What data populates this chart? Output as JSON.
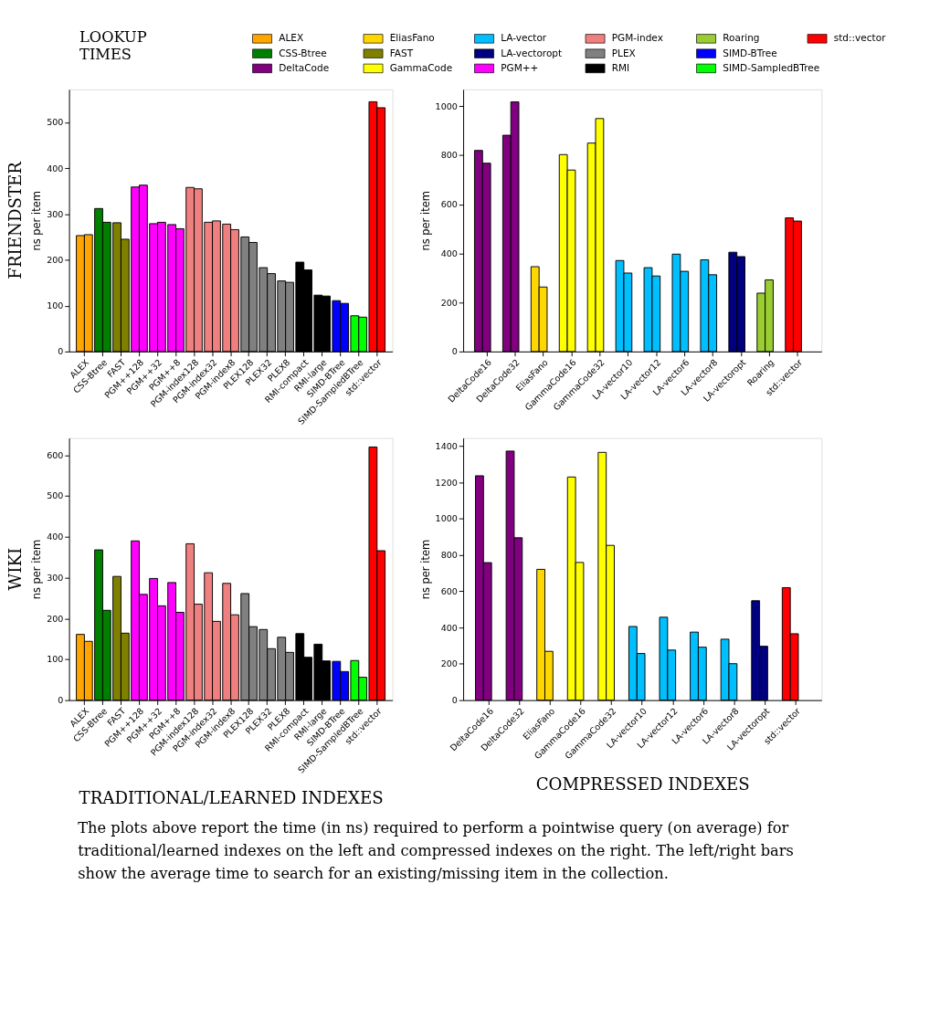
{
  "chart_data": [
    {
      "type": "other",
      "title": "LOOKUP TIMES",
      "categories": [
        "ALEX",
        "CSS-Btree",
        "DeltaCode",
        "EliasFano",
        "FAST",
        "GammaCode",
        "LA-vector",
        "LA-vectoropt",
        "PGM++",
        "PGM-index",
        "PLEX",
        "RMI",
        "Roaring",
        "SIMD-BTree",
        "SIMD-SampledBTree",
        "std::vector"
      ],
      "colors": [
        "#ffa500",
        "#008000",
        "#800080",
        "#ffd700",
        "#808000",
        "#ffff00",
        "#00bfff",
        "#000080",
        "#ff00ff",
        "#f08080",
        "#808080",
        "#000000",
        "#9acd32",
        "#0000ff",
        "#00ff00",
        "#ff0000"
      ]
    },
    {
      "type": "bar",
      "title": "FRIENDSTER",
      "ylabel": "ns per item",
      "ylim": [
        0,
        572
      ],
      "yticks": [
        0,
        100,
        200,
        300,
        400,
        500
      ],
      "categories": [
        "ALEX",
        "CSS-Btree",
        "FAST",
        "PGM++128",
        "PGM++32",
        "PGM++8",
        "PGM-index128",
        "PGM-index32",
        "PGM-index8",
        "PLEX128",
        "PLEX32",
        "PLEX8",
        "RMI-compact",
        "RMI-large",
        "SIMD-BTree",
        "SIMD-SampledBTree",
        "std::vector"
      ],
      "series": [
        {
          "values": [
            253,
            312,
            281,
            359,
            279,
            277,
            358,
            282,
            278,
            250,
            183,
            154,
            195,
            123,
            111,
            78,
            545
          ],
          "colors": [
            "#ffa500",
            "#008000",
            "#808000",
            "#ff00ff",
            "#ff00ff",
            "#ff00ff",
            "#f08080",
            "#f08080",
            "#f08080",
            "#808080",
            "#808080",
            "#808080",
            "#000000",
            "#000000",
            "#0000ff",
            "#00ff00",
            "#ff0000"
          ]
        },
        {
          "values": [
            255,
            282,
            245,
            363,
            282,
            268,
            355,
            285,
            266,
            238,
            170,
            151,
            178,
            121,
            105,
            75,
            532
          ],
          "colors": [
            "#ffa500",
            "#008000",
            "#808000",
            "#ff00ff",
            "#ff00ff",
            "#ff00ff",
            "#f08080",
            "#f08080",
            "#f08080",
            "#808080",
            "#808080",
            "#808080",
            "#000000",
            "#000000",
            "#0000ff",
            "#00ff00",
            "#ff0000"
          ]
        }
      ]
    },
    {
      "type": "bar",
      "ylabel": "ns per item",
      "ylim": [
        0,
        1069
      ],
      "yticks": [
        0,
        200,
        400,
        600,
        800,
        1000
      ],
      "categories": [
        "DeltaCode16",
        "DeltaCode32",
        "EliasFano",
        "GammaCode16",
        "GammaCode32",
        "LA-vector10",
        "LA-vector12",
        "LA-vector6",
        "LA-vector8",
        "LA-vectoropt",
        "Roaring",
        "std::vector"
      ],
      "series": [
        {
          "values": [
            820,
            882,
            346,
            803,
            850,
            371,
            342,
            397,
            374,
            405,
            238,
            545
          ],
          "colors": [
            "#800080",
            "#800080",
            "#ffd700",
            "#ffff00",
            "#ffff00",
            "#00bfff",
            "#00bfff",
            "#00bfff",
            "#00bfff",
            "#000080",
            "#9acd32",
            "#ff0000"
          ]
        },
        {
          "values": [
            768,
            1018,
            263,
            740,
            950,
            320,
            308,
            327,
            313,
            387,
            292,
            532
          ],
          "colors": [
            "#800080",
            "#800080",
            "#ffd700",
            "#ffff00",
            "#ffff00",
            "#00bfff",
            "#00bfff",
            "#00bfff",
            "#00bfff",
            "#000080",
            "#9acd32",
            "#ff0000"
          ]
        }
      ]
    },
    {
      "type": "bar",
      "title": "WIKI",
      "ylabel": "ns per item",
      "xlabel": "TRADITIONAL/LEARNED INDEXES",
      "ylim": [
        0,
        642
      ],
      "yticks": [
        0,
        100,
        200,
        300,
        400,
        500,
        600
      ],
      "categories": [
        "ALEX",
        "CSS-Btree",
        "FAST",
        "PGM++128",
        "PGM++32",
        "PGM++8",
        "PGM-index128",
        "PGM-index32",
        "PGM-index8",
        "PLEX128",
        "PLEX32",
        "PLEX8",
        "RMI-compact",
        "RMI-large",
        "SIMD-BTree",
        "SIMD-SampledBTree",
        "std::vector"
      ],
      "series": [
        {
          "values": [
            161,
            368,
            303,
            390,
            298,
            288,
            383,
            312,
            286,
            261,
            173,
            154,
            163,
            137,
            95,
            97,
            620
          ],
          "colors": [
            "#ffa500",
            "#008000",
            "#808000",
            "#ff00ff",
            "#ff00ff",
            "#ff00ff",
            "#f08080",
            "#f08080",
            "#f08080",
            "#808080",
            "#808080",
            "#808080",
            "#000000",
            "#000000",
            "#0000ff",
            "#00ff00",
            "#ff0000"
          ]
        },
        {
          "values": [
            144,
            220,
            164,
            259,
            231,
            215,
            235,
            193,
            209,
            180,
            126,
            117,
            105,
            96,
            70,
            56,
            366
          ],
          "colors": [
            "#ffa500",
            "#008000",
            "#808000",
            "#ff00ff",
            "#ff00ff",
            "#ff00ff",
            "#f08080",
            "#f08080",
            "#f08080",
            "#808080",
            "#808080",
            "#808080",
            "#000000",
            "#000000",
            "#0000ff",
            "#00ff00",
            "#ff0000"
          ]
        }
      ]
    },
    {
      "type": "bar",
      "ylabel": "ns per item",
      "xlabel": "COMPRESSED INDEXES",
      "ylim": [
        0,
        1445
      ],
      "yticks": [
        0,
        200,
        400,
        600,
        800,
        1000,
        1200,
        1400
      ],
      "categories": [
        "DeltaCode16",
        "DeltaCode32",
        "EliasFano",
        "GammaCode16",
        "GammaCode32",
        "LA-vector10",
        "LA-vector12",
        "LA-vector6",
        "LA-vector8",
        "LA-vectoropt",
        "std::vector"
      ],
      "series": [
        {
          "values": [
            1237,
            1373,
            721,
            1230,
            1366,
            406,
            457,
            375,
            336,
            548,
            620
          ],
          "colors": [
            "#800080",
            "#800080",
            "#ffd700",
            "#ffff00",
            "#ffff00",
            "#00bfff",
            "#00bfff",
            "#00bfff",
            "#00bfff",
            "#000080",
            "#ff0000"
          ]
        },
        {
          "values": [
            758,
            895,
            269,
            759,
            853,
            257,
            276,
            292,
            201,
            297,
            366
          ],
          "colors": [
            "#800080",
            "#800080",
            "#ffd700",
            "#ffff00",
            "#ffff00",
            "#00bfff",
            "#00bfff",
            "#00bfff",
            "#00bfff",
            "#000080",
            "#ff0000"
          ]
        }
      ]
    },
    {
      "type": "other",
      "annotations": [
        "The plots above report the time (in ns) required to perform a pointwise query (on average) for traditional/learned indexes on the left and compressed indexes on the right. The left/right bars show the average time to search for an existing/missing item in the collection."
      ]
    }
  ]
}
